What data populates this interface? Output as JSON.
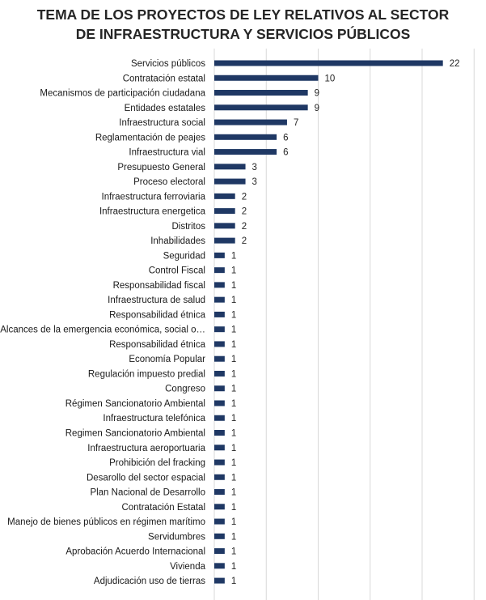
{
  "chart_data": {
    "type": "bar",
    "orientation": "horizontal",
    "title": "TEMA DE LOS PROYECTOS DE LEY RELATIVOS AL SECTOR DE INFRAESTRUCTURA Y SERVICIOS PÚBLICOS",
    "title_lines": [
      "TEMA DE LOS PROYECTOS DE LEY RELATIVOS AL SECTOR",
      "DE INFRAESTRUCTURA Y SERVICIOS PÚBLICOS"
    ],
    "categories": [
      "Servicios públicos",
      "Contratación estatal",
      "Mecanismos de participación ciudadana",
      "Entidades estatales",
      "Infraestructura social",
      "Reglamentación de peajes",
      "Infraestructura vial",
      "Presupuesto General",
      "Proceso electoral",
      "Infraestructura ferroviaria",
      "Infraestructura energetica",
      "Distritos",
      "Inhabilidades",
      "Seguridad",
      "Control Fiscal",
      "Responsabilidad fiscal",
      "Infraestructura de salud",
      "Responsabilidad étnica",
      "Alcances de la emergencia económica, social o…",
      "Responsabilidad étnica",
      "Economía Popular",
      "Regulación impuesto predial",
      "Congreso",
      "Régimen Sancionatorio Ambiental",
      "Infraestructura telefónica",
      "Regimen Sancionatorio Ambiental",
      "Infraestructura aeroportuaria",
      "Prohibición del fracking",
      "Desarollo del sector espacial",
      "Plan Nacional de Desarrollo",
      "Contratación Estatal",
      "Manejo de bienes públicos en régimen marítimo",
      "Servidumbres",
      "Aprobación Acuerdo Internacional",
      "Vivienda",
      "Adjudicación uso de tierras"
    ],
    "values": [
      22,
      10,
      9,
      9,
      7,
      6,
      6,
      3,
      3,
      2,
      2,
      2,
      2,
      1,
      1,
      1,
      1,
      1,
      1,
      1,
      1,
      1,
      1,
      1,
      1,
      1,
      1,
      1,
      1,
      1,
      1,
      1,
      1,
      1,
      1,
      1
    ],
    "xlim": [
      0,
      25
    ],
    "x_gridlines": [
      5,
      10,
      15,
      20,
      25
    ],
    "grid": true,
    "show_x_tick_labels": false,
    "data_labels": true,
    "legend": "none",
    "bar_color": "#1f3864",
    "gridline_color": "#d9d9d9"
  }
}
